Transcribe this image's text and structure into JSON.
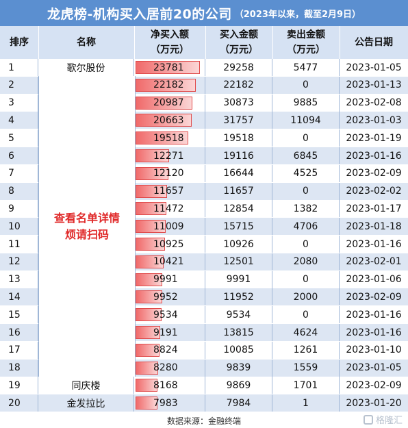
{
  "title": "龙虎榜-机构买入居前20的公司",
  "subtitle": "（2023年以来，截至2月9日）",
  "headers": {
    "rank": "排序",
    "name": "名称",
    "net_buy": "净买入额\n（万元）",
    "buy": "买入金额\n（万元）",
    "sell": "卖出金额\n（万元）",
    "date": "公告日期"
  },
  "merged_note_line1": "查看名单详情",
  "merged_note_line2": "烦请扫码",
  "rows": [
    {
      "rank": "1",
      "name": "歌尔股份",
      "net": "23781",
      "buy": "29258",
      "sell": "5477",
      "date": "2023-01-05"
    },
    {
      "rank": "2",
      "name": "",
      "net": "22182",
      "buy": "22182",
      "sell": "0",
      "date": "2023-01-13"
    },
    {
      "rank": "3",
      "name": "",
      "net": "20987",
      "buy": "30873",
      "sell": "9885",
      "date": "2023-02-08"
    },
    {
      "rank": "4",
      "name": "",
      "net": "20663",
      "buy": "31757",
      "sell": "11094",
      "date": "2023-01-03"
    },
    {
      "rank": "5",
      "name": "",
      "net": "19518",
      "buy": "19518",
      "sell": "0",
      "date": "2023-01-19"
    },
    {
      "rank": "6",
      "name": "",
      "net": "12271",
      "buy": "19116",
      "sell": "6845",
      "date": "2023-01-16"
    },
    {
      "rank": "7",
      "name": "",
      "net": "12120",
      "buy": "16644",
      "sell": "4525",
      "date": "2023-02-09"
    },
    {
      "rank": "8",
      "name": "",
      "net": "11657",
      "buy": "11657",
      "sell": "0",
      "date": "2023-02-02"
    },
    {
      "rank": "9",
      "name": "",
      "net": "11472",
      "buy": "12854",
      "sell": "1382",
      "date": "2023-01-17"
    },
    {
      "rank": "10",
      "name": "",
      "net": "11009",
      "buy": "15715",
      "sell": "4706",
      "date": "2023-01-18"
    },
    {
      "rank": "11",
      "name": "",
      "net": "10925",
      "buy": "10926",
      "sell": "0",
      "date": "2023-01-16"
    },
    {
      "rank": "12",
      "name": "",
      "net": "10421",
      "buy": "12501",
      "sell": "2080",
      "date": "2023-02-01"
    },
    {
      "rank": "13",
      "name": "",
      "net": "9991",
      "buy": "9991",
      "sell": "0",
      "date": "2023-01-06"
    },
    {
      "rank": "14",
      "name": "",
      "net": "9952",
      "buy": "11952",
      "sell": "2000",
      "date": "2023-02-09"
    },
    {
      "rank": "15",
      "name": "",
      "net": "9534",
      "buy": "9534",
      "sell": "0",
      "date": "2023-01-16"
    },
    {
      "rank": "16",
      "name": "",
      "net": "9191",
      "buy": "13815",
      "sell": "4624",
      "date": "2023-01-16"
    },
    {
      "rank": "17",
      "name": "",
      "net": "8824",
      "buy": "10085",
      "sell": "1261",
      "date": "2023-01-10"
    },
    {
      "rank": "18",
      "name": "",
      "net": "8280",
      "buy": "9839",
      "sell": "1559",
      "date": "2023-01-05"
    },
    {
      "rank": "19",
      "name": "同庆楼",
      "net": "8168",
      "buy": "9869",
      "sell": "1701",
      "date": "2023-02-09"
    },
    {
      "rank": "20",
      "name": "金发拉比",
      "net": "7983",
      "buy": "7984",
      "sell": "1",
      "date": "2023-01-20"
    }
  ],
  "source": "数据来源：金融终端",
  "watermark": "格隆汇",
  "colors": {
    "title_bg": "#5b8fd0",
    "header_bg": "#d6e2f3",
    "stripe": "#dde6f3",
    "bar": "#f06a6a",
    "note": "#e02a2a"
  }
}
